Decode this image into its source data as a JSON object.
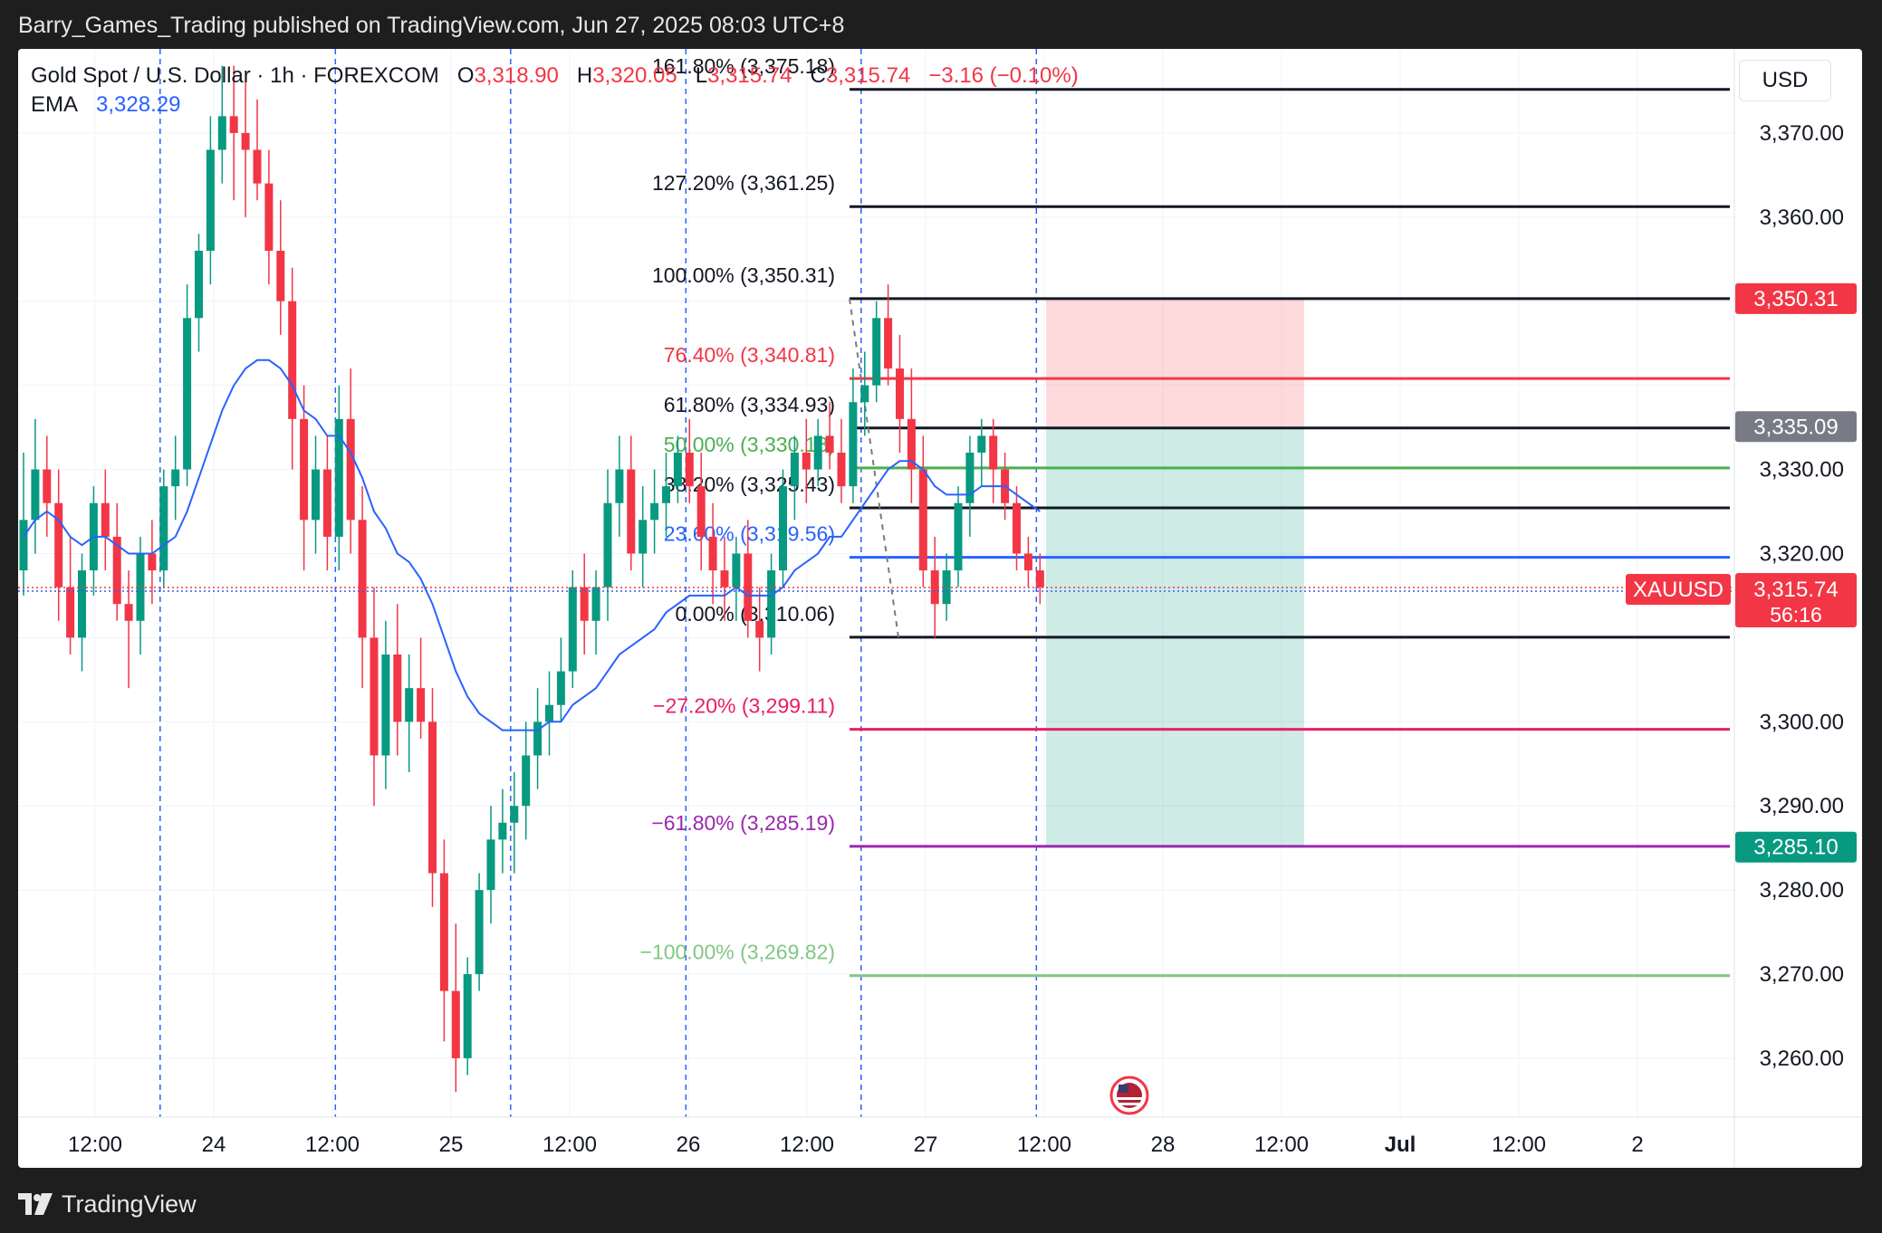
{
  "header": {
    "publisher_line": "Barry_Games_Trading published on TradingView.com, Jun 27, 2025 08:03 UTC+8"
  },
  "legend": {
    "symbol": "Gold Spot / U.S. Dollar · 1h · FOREXCOM",
    "o_label": "O",
    "o_value": "3,318.90",
    "h_label": "H",
    "h_value": "3,320.05",
    "l_label": "L",
    "l_value": "3,315.74",
    "c_label": "C",
    "c_value": "3,315.74",
    "change": "−3.16 (−0.10%)",
    "ema_label": "EMA",
    "ema_value": "3,328.29"
  },
  "currency_button": "USD",
  "footer": {
    "brand": "TradingView"
  },
  "colors": {
    "up": "#089981",
    "down": "#f23645",
    "ema": "#2962ff",
    "grid": "#f0f3fa",
    "vline": "#2962ff",
    "short_loss": "#f23645",
    "short_profit": "#089981"
  },
  "chart_data": {
    "type": "candlestick",
    "symbol": "XAUUSD",
    "timeframe": "1h",
    "y_range": [
      3253,
      3380
    ],
    "y_ticks": [
      "3,370.00",
      "3,360.00",
      "3,330.00",
      "3,320.00",
      "3,300.00",
      "3,290.00",
      "3,280.00",
      "3,270.00",
      "3,260.00"
    ],
    "y_tick_values": [
      3370,
      3360,
      3330,
      3320,
      3300,
      3290,
      3280,
      3270,
      3260
    ],
    "x_ticks": [
      "12:00",
      "24",
      "12:00",
      "25",
      "12:00",
      "26",
      "12:00",
      "27",
      "12:00",
      "28",
      "12:00",
      "Jul",
      "12:00",
      "2"
    ],
    "price_labels": [
      {
        "value": 3350.31,
        "text": "3,350.31",
        "color": "#f23645"
      },
      {
        "value": 3335.09,
        "text": "3,335.09",
        "color": "#787b86"
      },
      {
        "value": 3285.1,
        "text": "3,285.10",
        "color": "#089981"
      }
    ],
    "last_price": {
      "value": 3315.74,
      "text": "3,315.74",
      "symbol_label": "XAUUSD",
      "countdown": "56:16"
    },
    "fib_levels": [
      {
        "label": "161.80% (3,375.18)",
        "value": 3375.18,
        "color": "#131722",
        "text_color": "#131722"
      },
      {
        "label": "127.20% (3,361.25)",
        "value": 3361.25,
        "color": "#131722",
        "text_color": "#131722"
      },
      {
        "label": "100.00% (3,350.31)",
        "value": 3350.31,
        "color": "#131722",
        "text_color": "#131722"
      },
      {
        "label": "76.40% (3,340.81)",
        "value": 3340.81,
        "color": "#f23645",
        "text_color": "#f23645"
      },
      {
        "label": "61.80% (3,334.93)",
        "value": 3334.93,
        "color": "#131722",
        "text_color": "#131722"
      },
      {
        "label": "50.00% (3,330.18)",
        "value": 3330.18,
        "color": "#4caf50",
        "text_color": "#4caf50"
      },
      {
        "label": "38.20% (3,325.43)",
        "value": 3325.43,
        "color": "#131722",
        "text_color": "#131722"
      },
      {
        "label": "23.60% (3,319.56)",
        "value": 3319.56,
        "color": "#2962ff",
        "text_color": "#2962ff"
      },
      {
        "label": "0.00% (3,310.06)",
        "value": 3310.06,
        "color": "#131722",
        "text_color": "#131722"
      },
      {
        "label": "−27.20% (3,299.11)",
        "value": 3299.11,
        "color": "#e91e63",
        "text_color": "#e91e63"
      },
      {
        "label": "−61.80% (3,285.19)",
        "value": 3285.19,
        "color": "#9c27b0",
        "text_color": "#9c27b0"
      },
      {
        "label": "−100.00% (3,269.82)",
        "value": 3269.82,
        "color": "#81c784",
        "text_color": "#81c784"
      }
    ],
    "position": {
      "type": "short",
      "stop": 3350.31,
      "entry": 3335.09,
      "target": 3285.1
    },
    "ohlc": [
      [
        3318,
        3332,
        3315,
        3324
      ],
      [
        3324,
        3336,
        3320,
        3330
      ],
      [
        3330,
        3334,
        3322,
        3326
      ],
      [
        3326,
        3330,
        3312,
        3316
      ],
      [
        3316,
        3322,
        3308,
        3310
      ],
      [
        3310,
        3320,
        3306,
        3318
      ],
      [
        3318,
        3328,
        3315,
        3326
      ],
      [
        3326,
        3330,
        3318,
        3322
      ],
      [
        3322,
        3326,
        3312,
        3314
      ],
      [
        3314,
        3318,
        3304,
        3312
      ],
      [
        3312,
        3322,
        3308,
        3320
      ],
      [
        3320,
        3324,
        3314,
        3318
      ],
      [
        3318,
        3330,
        3316,
        3328
      ],
      [
        3328,
        3334,
        3324,
        3330
      ],
      [
        3330,
        3352,
        3328,
        3348
      ],
      [
        3348,
        3358,
        3344,
        3356
      ],
      [
        3356,
        3372,
        3352,
        3368
      ],
      [
        3368,
        3378,
        3364,
        3372
      ],
      [
        3372,
        3378,
        3362,
        3370
      ],
      [
        3370,
        3376,
        3360,
        3368
      ],
      [
        3368,
        3374,
        3362,
        3364
      ],
      [
        3364,
        3368,
        3352,
        3356
      ],
      [
        3356,
        3362,
        3346,
        3350
      ],
      [
        3350,
        3354,
        3330,
        3336
      ],
      [
        3336,
        3340,
        3318,
        3324
      ],
      [
        3324,
        3334,
        3320,
        3330
      ],
      [
        3330,
        3334,
        3318,
        3322
      ],
      [
        3322,
        3340,
        3318,
        3336
      ],
      [
        3336,
        3342,
        3320,
        3324
      ],
      [
        3324,
        3328,
        3304,
        3310
      ],
      [
        3310,
        3316,
        3290,
        3296
      ],
      [
        3296,
        3312,
        3292,
        3308
      ],
      [
        3308,
        3314,
        3296,
        3300
      ],
      [
        3300,
        3308,
        3294,
        3304
      ],
      [
        3304,
        3310,
        3298,
        3300
      ],
      [
        3300,
        3304,
        3278,
        3282
      ],
      [
        3282,
        3286,
        3262,
        3268
      ],
      [
        3268,
        3276,
        3256,
        3260
      ],
      [
        3260,
        3272,
        3258,
        3270
      ],
      [
        3270,
        3282,
        3268,
        3280
      ],
      [
        3280,
        3290,
        3276,
        3286
      ],
      [
        3286,
        3292,
        3282,
        3288
      ],
      [
        3288,
        3294,
        3282,
        3290
      ],
      [
        3290,
        3300,
        3286,
        3296
      ],
      [
        3296,
        3304,
        3292,
        3300
      ],
      [
        3300,
        3306,
        3296,
        3302
      ],
      [
        3302,
        3310,
        3300,
        3306
      ],
      [
        3306,
        3318,
        3304,
        3316
      ],
      [
        3316,
        3320,
        3308,
        3312
      ],
      [
        3312,
        3318,
        3308,
        3316
      ],
      [
        3316,
        3330,
        3312,
        3326
      ],
      [
        3326,
        3334,
        3322,
        3330
      ],
      [
        3330,
        3334,
        3318,
        3320
      ],
      [
        3320,
        3328,
        3316,
        3324
      ],
      [
        3324,
        3330,
        3320,
        3326
      ],
      [
        3326,
        3332,
        3322,
        3328
      ],
      [
        3328,
        3334,
        3326,
        3332
      ],
      [
        3332,
        3336,
        3326,
        3328
      ],
      [
        3328,
        3332,
        3318,
        3322
      ],
      [
        3322,
        3326,
        3314,
        3318
      ],
      [
        3318,
        3322,
        3312,
        3316
      ],
      [
        3316,
        3322,
        3312,
        3320
      ],
      [
        3320,
        3324,
        3310,
        3312
      ],
      [
        3312,
        3316,
        3306,
        3310
      ],
      [
        3310,
        3320,
        3308,
        3318
      ],
      [
        3318,
        3330,
        3316,
        3328
      ],
      [
        3328,
        3334,
        3324,
        3332
      ],
      [
        3332,
        3336,
        3326,
        3330
      ],
      [
        3330,
        3336,
        3328,
        3334
      ],
      [
        3334,
        3338,
        3330,
        3332
      ],
      [
        3332,
        3336,
        3326,
        3328
      ],
      [
        3328,
        3342,
        3326,
        3338
      ],
      [
        3338,
        3344,
        3334,
        3340
      ],
      [
        3340,
        3350,
        3338,
        3348
      ],
      [
        3348,
        3352,
        3340,
        3342
      ],
      [
        3342,
        3346,
        3332,
        3336
      ],
      [
        3336,
        3342,
        3326,
        3330
      ],
      [
        3330,
        3334,
        3316,
        3318
      ],
      [
        3318,
        3322,
        3310,
        3314
      ],
      [
        3314,
        3320,
        3312,
        3318
      ],
      [
        3318,
        3328,
        3316,
        3326
      ],
      [
        3326,
        3334,
        3322,
        3332
      ],
      [
        3332,
        3336,
        3328,
        3334
      ],
      [
        3334,
        3336,
        3326,
        3330
      ],
      [
        3330,
        3332,
        3324,
        3326
      ],
      [
        3326,
        3328,
        3318,
        3320
      ],
      [
        3320,
        3322,
        3316,
        3318
      ],
      [
        3318,
        3320,
        3314,
        3316
      ]
    ],
    "ema": [
      3322,
      3324,
      3325,
      3324,
      3322,
      3321,
      3322,
      3322,
      3321,
      3320,
      3320,
      3320,
      3321,
      3322,
      3325,
      3329,
      3333,
      3337,
      3340,
      3342,
      3343,
      3343,
      3342,
      3340,
      3337,
      3336,
      3334,
      3334,
      3332,
      3329,
      3325,
      3323,
      3320,
      3319,
      3317,
      3314,
      3310,
      3306,
      3303,
      3301,
      3300,
      3299,
      3299,
      3299,
      3299,
      3300,
      3300,
      3302,
      3303,
      3304,
      3306,
      3308,
      3309,
      3310,
      3311,
      3313,
      3314,
      3315,
      3315,
      3315,
      3315,
      3316,
      3315,
      3315,
      3315,
      3316,
      3318,
      3319,
      3320,
      3322,
      3322,
      3324,
      3326,
      3328,
      3330,
      3331,
      3331,
      3330,
      3328,
      3327,
      3327,
      3327,
      3328,
      3328,
      3328,
      3327,
      3326,
      3325
    ],
    "swing_low_value": 3310.06,
    "swing_high_value": 3350.31
  }
}
